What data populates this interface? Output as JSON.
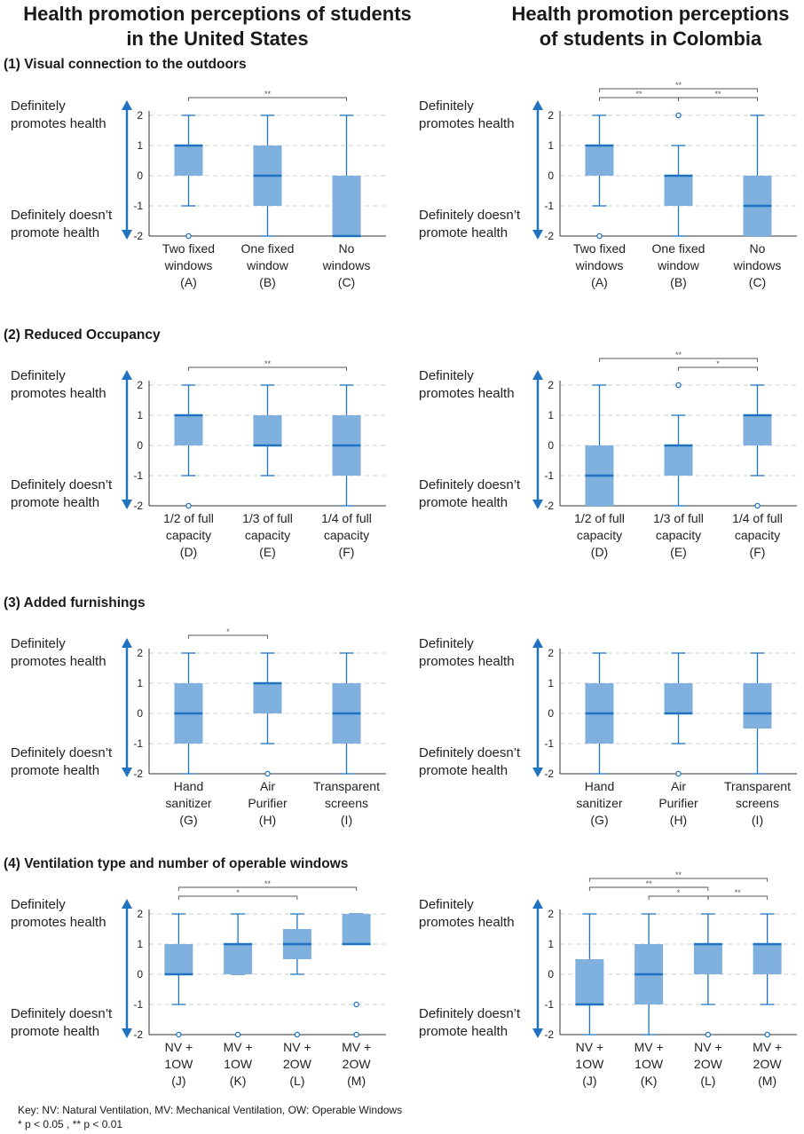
{
  "column_titles": {
    "left": [
      "Health promotion perceptions of students",
      "in the United States"
    ],
    "right": [
      "Health promotion perceptions",
      "of students in Colombia"
    ]
  },
  "section_titles": [
    "(1) Visual connection to the outdoors",
    "(2) Reduced Occupancy",
    "(3) Added furnishings",
    "(4) Ventilation type and number of operable windows"
  ],
  "y_end_labels": {
    "top": [
      "Definitely",
      "promotes health"
    ],
    "bottom": [
      "Definitely doesn’t",
      "promote health"
    ]
  },
  "footer": {
    "key": "Key:   NV: Natural Ventilation,  MV: Mechanical Ventilation, OW: Operable Windows",
    "p_note": "* p < 0.05 , ** p < 0.01"
  },
  "colors": {
    "box_fill": "#7fb0de",
    "line": "#1f73c0",
    "grid": "#cfcfcf",
    "axis": "#333333"
  },
  "chart_data": [
    {
      "type": "boxplot",
      "section": 1,
      "country": "United States",
      "ylim": [
        -2,
        2
      ],
      "yticks": [
        -2,
        -1,
        0,
        1,
        2
      ],
      "categories": [
        [
          "Two fixed",
          "windows",
          "(A)"
        ],
        [
          "One fixed",
          "window",
          "(B)"
        ],
        [
          "No",
          "windows",
          "(C)"
        ]
      ],
      "series": [
        {
          "q1": 0,
          "median": 1,
          "q3": 1,
          "whisker_low": -1,
          "whisker_high": 2,
          "outliers": [
            -2
          ]
        },
        {
          "q1": -1,
          "median": 0,
          "q3": 1,
          "whisker_low": -2,
          "whisker_high": 2,
          "outliers": []
        },
        {
          "q1": -2,
          "median": -2,
          "q3": 0,
          "whisker_low": -2,
          "whisker_high": 2,
          "outliers": []
        }
      ],
      "significance": [
        {
          "from": 0,
          "to": 2,
          "label": "**",
          "level": 1
        }
      ]
    },
    {
      "type": "boxplot",
      "section": 1,
      "country": "Colombia",
      "ylim": [
        -2,
        2
      ],
      "yticks": [
        -2,
        -1,
        0,
        1,
        2
      ],
      "categories": [
        [
          "Two fixed",
          "windows",
          "(A)"
        ],
        [
          "One fixed",
          "window",
          "(B)"
        ],
        [
          "No",
          "windows",
          "(C)"
        ]
      ],
      "series": [
        {
          "q1": 0,
          "median": 1,
          "q3": 1,
          "whisker_low": -1,
          "whisker_high": 2,
          "outliers": [
            -2
          ]
        },
        {
          "q1": -1,
          "median": 0,
          "q3": 0,
          "whisker_low": -2,
          "whisker_high": 1,
          "outliers": [
            2
          ]
        },
        {
          "q1": -2,
          "median": -1,
          "q3": 0,
          "whisker_low": -2,
          "whisker_high": 2,
          "outliers": []
        }
      ],
      "significance": [
        {
          "from": 0,
          "to": 2,
          "label": "**",
          "level": 2
        },
        {
          "from": 0,
          "to": 1,
          "label": "**",
          "level": 1
        },
        {
          "from": 1,
          "to": 2,
          "label": "**",
          "level": 1
        }
      ]
    },
    {
      "type": "boxplot",
      "section": 2,
      "country": "United States",
      "ylim": [
        -2,
        2
      ],
      "yticks": [
        -2,
        -1,
        0,
        1,
        2
      ],
      "categories": [
        [
          "1/2 of full",
          "capacity",
          "(D)"
        ],
        [
          "1/3 of full",
          "capacity",
          "(E)"
        ],
        [
          "1/4 of full",
          "capacity",
          "(F)"
        ]
      ],
      "series": [
        {
          "q1": 0,
          "median": 1,
          "q3": 1,
          "whisker_low": -1,
          "whisker_high": 2,
          "outliers": [
            -2
          ]
        },
        {
          "q1": 0,
          "median": 0,
          "q3": 1,
          "whisker_low": -1,
          "whisker_high": 2,
          "outliers": []
        },
        {
          "q1": -1,
          "median": 0,
          "q3": 1,
          "whisker_low": -2,
          "whisker_high": 2,
          "outliers": []
        }
      ],
      "significance": [
        {
          "from": 0,
          "to": 2,
          "label": "**",
          "level": 1
        }
      ]
    },
    {
      "type": "boxplot",
      "section": 2,
      "country": "Colombia",
      "ylim": [
        -2,
        2
      ],
      "yticks": [
        -2,
        -1,
        0,
        1,
        2
      ],
      "categories": [
        [
          "1/2 of full",
          "capacity",
          "(D)"
        ],
        [
          "1/3 of full",
          "capacity",
          "(E)"
        ],
        [
          "1/4 of full",
          "capacity",
          "(F)"
        ]
      ],
      "series": [
        {
          "q1": -2,
          "median": -1,
          "q3": 0,
          "whisker_low": -2,
          "whisker_high": 2,
          "outliers": []
        },
        {
          "q1": -1,
          "median": 0,
          "q3": 0,
          "whisker_low": -2,
          "whisker_high": 1,
          "outliers": [
            2
          ]
        },
        {
          "q1": 0,
          "median": 1,
          "q3": 1,
          "whisker_low": -1,
          "whisker_high": 2,
          "outliers": [
            -2
          ]
        }
      ],
      "significance": [
        {
          "from": 0,
          "to": 2,
          "label": "**",
          "level": 2
        },
        {
          "from": 1,
          "to": 2,
          "label": "*",
          "level": 1
        }
      ]
    },
    {
      "type": "boxplot",
      "section": 3,
      "country": "United States",
      "ylim": [
        -2,
        2
      ],
      "yticks": [
        -2,
        -1,
        0,
        1,
        2
      ],
      "categories": [
        [
          "Hand",
          "sanitizer",
          "(G)"
        ],
        [
          "Air",
          "Purifier",
          "(H)"
        ],
        [
          "Transparent",
          "screens",
          "(I)"
        ]
      ],
      "series": [
        {
          "q1": -1,
          "median": 0,
          "q3": 1,
          "whisker_low": -2,
          "whisker_high": 2,
          "outliers": []
        },
        {
          "q1": 0,
          "median": 1,
          "q3": 1,
          "whisker_low": -1,
          "whisker_high": 2,
          "outliers": [
            -2
          ]
        },
        {
          "q1": -1,
          "median": 0,
          "q3": 1,
          "whisker_low": -2,
          "whisker_high": 2,
          "outliers": []
        }
      ],
      "significance": [
        {
          "from": 0,
          "to": 1,
          "label": "*",
          "level": 1
        }
      ]
    },
    {
      "type": "boxplot",
      "section": 3,
      "country": "Colombia",
      "ylim": [
        -2,
        2
      ],
      "yticks": [
        -2,
        -1,
        0,
        1,
        2
      ],
      "categories": [
        [
          "Hand",
          "sanitizer",
          "(G)"
        ],
        [
          "Air",
          "Purifier",
          "(H)"
        ],
        [
          "Transparent",
          "screens",
          "(I)"
        ]
      ],
      "series": [
        {
          "q1": -1,
          "median": 0,
          "q3": 1,
          "whisker_low": -2,
          "whisker_high": 2,
          "outliers": []
        },
        {
          "q1": 0,
          "median": 0,
          "q3": 1,
          "whisker_low": -1,
          "whisker_high": 2,
          "outliers": [
            -2
          ]
        },
        {
          "q1": -0.5,
          "median": 0,
          "q3": 1,
          "whisker_low": -2,
          "whisker_high": 2,
          "outliers": []
        }
      ],
      "significance": []
    },
    {
      "type": "boxplot",
      "section": 4,
      "country": "United States",
      "ylim": [
        -2,
        2
      ],
      "yticks": [
        -2,
        -1,
        0,
        1,
        2
      ],
      "categories": [
        [
          "NV +",
          "1OW",
          "(J)"
        ],
        [
          "MV +",
          "1OW",
          "(K)"
        ],
        [
          "NV +",
          "2OW",
          "(L)"
        ],
        [
          "MV +",
          "2OW",
          "(M)"
        ]
      ],
      "series": [
        {
          "q1": 0,
          "median": 0,
          "q3": 1,
          "whisker_low": -1,
          "whisker_high": 2,
          "outliers": [
            -2
          ]
        },
        {
          "q1": 0,
          "median": 1,
          "q3": 1,
          "whisker_low": 0,
          "whisker_high": 2,
          "outliers": [
            -2
          ]
        },
        {
          "q1": 0.5,
          "median": 1,
          "q3": 1.5,
          "whisker_low": 0,
          "whisker_high": 2,
          "outliers": [
            -2
          ]
        },
        {
          "q1": 1,
          "median": 1,
          "q3": 2,
          "whisker_low": 1,
          "whisker_high": 2,
          "outliers": [
            -1,
            -2
          ]
        }
      ],
      "significance": [
        {
          "from": 0,
          "to": 3,
          "label": "**",
          "level": 2
        },
        {
          "from": 0,
          "to": 2,
          "label": "*",
          "level": 1
        }
      ]
    },
    {
      "type": "boxplot",
      "section": 4,
      "country": "Colombia",
      "ylim": [
        -2,
        2
      ],
      "yticks": [
        -2,
        -1,
        0,
        1,
        2
      ],
      "categories": [
        [
          "NV +",
          "1OW",
          "(J)"
        ],
        [
          "MV +",
          "1OW",
          "(K)"
        ],
        [
          "NV +",
          "2OW",
          "(L)"
        ],
        [
          "MV +",
          "2OW",
          "(M)"
        ]
      ],
      "series": [
        {
          "q1": -1,
          "median": -1,
          "q3": 0.5,
          "whisker_low": -2,
          "whisker_high": 2,
          "outliers": []
        },
        {
          "q1": -1,
          "median": 0,
          "q3": 1,
          "whisker_low": -2,
          "whisker_high": 2,
          "outliers": []
        },
        {
          "q1": 0,
          "median": 1,
          "q3": 1,
          "whisker_low": -1,
          "whisker_high": 2,
          "outliers": [
            -2
          ]
        },
        {
          "q1": 0,
          "median": 1,
          "q3": 1,
          "whisker_low": -1,
          "whisker_high": 2,
          "outliers": [
            -2
          ]
        }
      ],
      "significance": [
        {
          "from": 0,
          "to": 3,
          "label": "**",
          "level": 3
        },
        {
          "from": 0,
          "to": 2,
          "label": "**",
          "level": 2
        },
        {
          "from": 2,
          "to": 3,
          "label": "**",
          "level": 1
        },
        {
          "from": 1,
          "to": 2,
          "label": "*",
          "level": 1
        }
      ]
    }
  ]
}
